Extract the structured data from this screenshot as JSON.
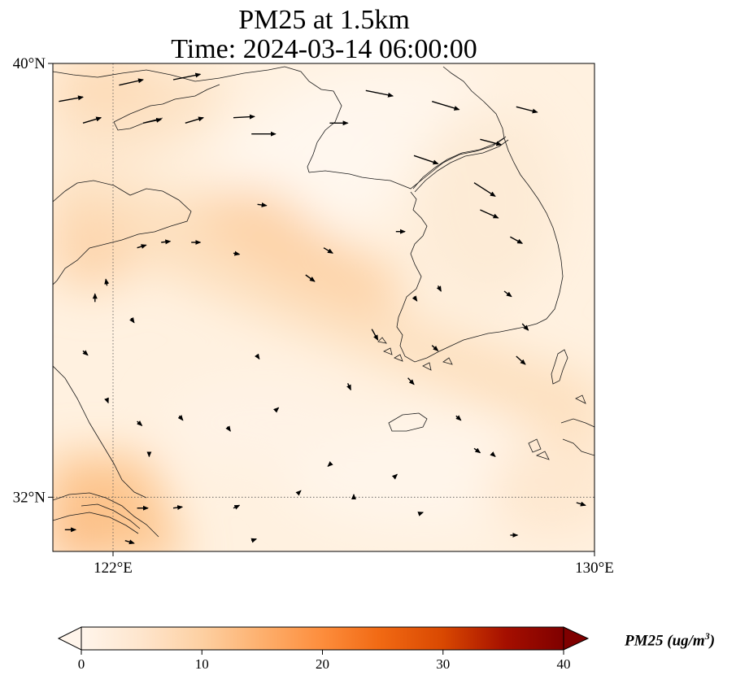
{
  "title": {
    "line1": "PM25 at 1.5km",
    "line2": "Time: 2024-03-14 06:00:00"
  },
  "map": {
    "extent": {
      "lon_min": 121,
      "lon_max": 130,
      "lat_min": 31,
      "lat_max": 40
    },
    "lat_ticks": [
      {
        "value": 40,
        "label": "40°N"
      },
      {
        "value": 32,
        "label": "32°N"
      }
    ],
    "lon_ticks": [
      {
        "value": 122,
        "label": "122°E"
      },
      {
        "value": 130,
        "label": "130°E"
      }
    ],
    "gridlines": {
      "lon": 122,
      "lat": 32,
      "style": "dotted"
    }
  },
  "colorbar": {
    "label_main": "PM25 (ug/m",
    "label_sup": "3",
    "label_end": ")",
    "min": 0,
    "max": 40,
    "ticks": [
      "0",
      "10",
      "20",
      "30",
      "40"
    ],
    "colors": [
      "#fff5eb",
      "#fee6ce",
      "#fdd0a2",
      "#fdae6b",
      "#fd8d3c",
      "#f16913",
      "#d94801",
      "#a50f00",
      "#7f0000"
    ],
    "extend": "both"
  },
  "wind_vectors": [
    {
      "lon": 121.1,
      "lat": 39.3,
      "dx": 0.4,
      "dy": 0.08
    },
    {
      "lon": 121.5,
      "lat": 38.9,
      "dx": 0.3,
      "dy": 0.1
    },
    {
      "lon": 122.1,
      "lat": 39.6,
      "dx": 0.4,
      "dy": 0.1
    },
    {
      "lon": 122.5,
      "lat": 38.9,
      "dx": 0.3,
      "dy": 0.07
    },
    {
      "lon": 123.0,
      "lat": 39.7,
      "dx": 0.45,
      "dy": 0.1
    },
    {
      "lon": 123.2,
      "lat": 38.9,
      "dx": 0.3,
      "dy": 0.1
    },
    {
      "lon": 124.0,
      "lat": 39.0,
      "dx": 0.35,
      "dy": 0.02
    },
    {
      "lon": 124.3,
      "lat": 38.7,
      "dx": 0.4,
      "dy": 0.0
    },
    {
      "lon": 125.6,
      "lat": 38.9,
      "dx": 0.3,
      "dy": 0.0
    },
    {
      "lon": 126.2,
      "lat": 39.5,
      "dx": 0.45,
      "dy": -0.1
    },
    {
      "lon": 127.3,
      "lat": 39.3,
      "dx": 0.45,
      "dy": -0.15
    },
    {
      "lon": 128.1,
      "lat": 38.6,
      "dx": 0.35,
      "dy": -0.1
    },
    {
      "lon": 128.7,
      "lat": 39.2,
      "dx": 0.35,
      "dy": -0.1
    },
    {
      "lon": 127.0,
      "lat": 38.3,
      "dx": 0.4,
      "dy": -0.15
    },
    {
      "lon": 128.0,
      "lat": 37.8,
      "dx": 0.35,
      "dy": -0.25
    },
    {
      "lon": 128.1,
      "lat": 37.3,
      "dx": 0.3,
      "dy": -0.15
    },
    {
      "lon": 128.6,
      "lat": 36.8,
      "dx": 0.2,
      "dy": -0.12
    },
    {
      "lon": 124.4,
      "lat": 37.4,
      "dx": 0.15,
      "dy": -0.02
    },
    {
      "lon": 125.5,
      "lat": 36.6,
      "dx": 0.15,
      "dy": -0.1
    },
    {
      "lon": 126.7,
      "lat": 36.9,
      "dx": 0.15,
      "dy": 0.0
    },
    {
      "lon": 122.4,
      "lat": 36.6,
      "dx": 0.15,
      "dy": 0.05
    },
    {
      "lon": 122.8,
      "lat": 36.7,
      "dx": 0.15,
      "dy": 0.02
    },
    {
      "lon": 123.3,
      "lat": 36.7,
      "dx": 0.15,
      "dy": 0.0
    },
    {
      "lon": 124.0,
      "lat": 36.5,
      "dx": 0.1,
      "dy": -0.02
    },
    {
      "lon": 125.2,
      "lat": 36.1,
      "dx": 0.15,
      "dy": -0.12
    },
    {
      "lon": 127.0,
      "lat": 35.7,
      "dx": 0.05,
      "dy": -0.08
    },
    {
      "lon": 127.4,
      "lat": 35.9,
      "dx": 0.05,
      "dy": -0.1
    },
    {
      "lon": 128.5,
      "lat": 35.8,
      "dx": 0.12,
      "dy": -0.1
    },
    {
      "lon": 128.8,
      "lat": 35.2,
      "dx": 0.1,
      "dy": -0.12
    },
    {
      "lon": 126.3,
      "lat": 35.1,
      "dx": 0.1,
      "dy": -0.2
    },
    {
      "lon": 127.3,
      "lat": 34.8,
      "dx": 0.1,
      "dy": -0.1
    },
    {
      "lon": 128.7,
      "lat": 34.6,
      "dx": 0.15,
      "dy": -0.15
    },
    {
      "lon": 121.7,
      "lat": 35.6,
      "dx": 0.0,
      "dy": 0.15
    },
    {
      "lon": 122.3,
      "lat": 35.3,
      "dx": 0.05,
      "dy": -0.08
    },
    {
      "lon": 121.5,
      "lat": 34.7,
      "dx": 0.08,
      "dy": -0.08
    },
    {
      "lon": 121.9,
      "lat": 35.9,
      "dx": -0.02,
      "dy": 0.12
    },
    {
      "lon": 124.4,
      "lat": 34.6,
      "dx": 0.03,
      "dy": -0.05
    },
    {
      "lon": 125.9,
      "lat": 34.1,
      "dx": 0.05,
      "dy": -0.12
    },
    {
      "lon": 126.9,
      "lat": 34.2,
      "dx": 0.1,
      "dy": -0.12
    },
    {
      "lon": 127.7,
      "lat": 33.5,
      "dx": 0.08,
      "dy": -0.08
    },
    {
      "lon": 121.9,
      "lat": 33.8,
      "dx": 0.02,
      "dy": -0.06
    },
    {
      "lon": 122.4,
      "lat": 33.4,
      "dx": 0.08,
      "dy": -0.08
    },
    {
      "lon": 123.1,
      "lat": 33.5,
      "dx": 0.06,
      "dy": -0.08
    },
    {
      "lon": 123.9,
      "lat": 33.3,
      "dx": 0.05,
      "dy": -0.08
    },
    {
      "lon": 122.6,
      "lat": 32.8,
      "dx": 0.0,
      "dy": -0.05
    },
    {
      "lon": 124.7,
      "lat": 33.6,
      "dx": 0.05,
      "dy": 0.05
    },
    {
      "lon": 128.0,
      "lat": 32.9,
      "dx": 0.1,
      "dy": -0.08
    },
    {
      "lon": 128.3,
      "lat": 32.8,
      "dx": 0.05,
      "dy": -0.05
    },
    {
      "lon": 125.6,
      "lat": 32.6,
      "dx": -0.03,
      "dy": -0.03
    },
    {
      "lon": 126.7,
      "lat": 32.4,
      "dx": 0.02,
      "dy": 0.02
    },
    {
      "lon": 122.4,
      "lat": 31.8,
      "dx": 0.18,
      "dy": 0.0
    },
    {
      "lon": 123.0,
      "lat": 31.8,
      "dx": 0.15,
      "dy": 0.02
    },
    {
      "lon": 124.0,
      "lat": 31.8,
      "dx": 0.1,
      "dy": 0.05
    },
    {
      "lon": 121.2,
      "lat": 31.4,
      "dx": 0.18,
      "dy": 0.0
    },
    {
      "lon": 122.2,
      "lat": 31.2,
      "dx": 0.15,
      "dy": -0.05
    },
    {
      "lon": 124.3,
      "lat": 31.2,
      "dx": 0.08,
      "dy": 0.03
    },
    {
      "lon": 127.1,
      "lat": 31.7,
      "dx": 0.05,
      "dy": 0.02
    },
    {
      "lon": 128.6,
      "lat": 31.3,
      "dx": 0.12,
      "dy": 0.0
    },
    {
      "lon": 129.7,
      "lat": 31.9,
      "dx": 0.15,
      "dy": -0.05
    },
    {
      "lon": 125.1,
      "lat": 32.1,
      "dx": 0.02,
      "dy": 0.02
    },
    {
      "lon": 126.0,
      "lat": 32.0,
      "dx": 0.0,
      "dy": 0.05
    }
  ]
}
